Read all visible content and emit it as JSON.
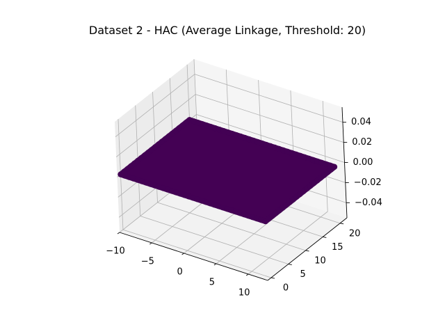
{
  "chart_data": {
    "type": "scatter",
    "projection": "3d",
    "title": "Dataset 2 - HAC (Average Linkage, Threshold: 20)",
    "xlabel": "",
    "ylabel": "",
    "zlabel": "",
    "xlim": [
      -10,
      13
    ],
    "ylim": [
      -1,
      22
    ],
    "zlim": [
      -0.055,
      0.055
    ],
    "x_ticks": [
      -10,
      -5,
      0,
      5,
      10
    ],
    "x_tick_labels": [
      "−10",
      "−5",
      "0",
      "5",
      "10"
    ],
    "y_ticks": [
      0,
      5,
      10,
      15,
      20
    ],
    "y_tick_labels": [
      "0",
      "5",
      "10",
      "15",
      "20"
    ],
    "z_ticks": [
      -0.04,
      -0.02,
      0.0,
      0.02,
      0.04
    ],
    "z_tick_labels": [
      "−0.04",
      "−0.02",
      "0.00",
      "0.02",
      "0.04"
    ],
    "grid": true,
    "series": [
      {
        "cluster": 0,
        "color": "#440154",
        "x_range": [
          -10,
          12.5
        ],
        "y_range": [
          0,
          20
        ],
        "z": 0.0
      }
    ]
  }
}
